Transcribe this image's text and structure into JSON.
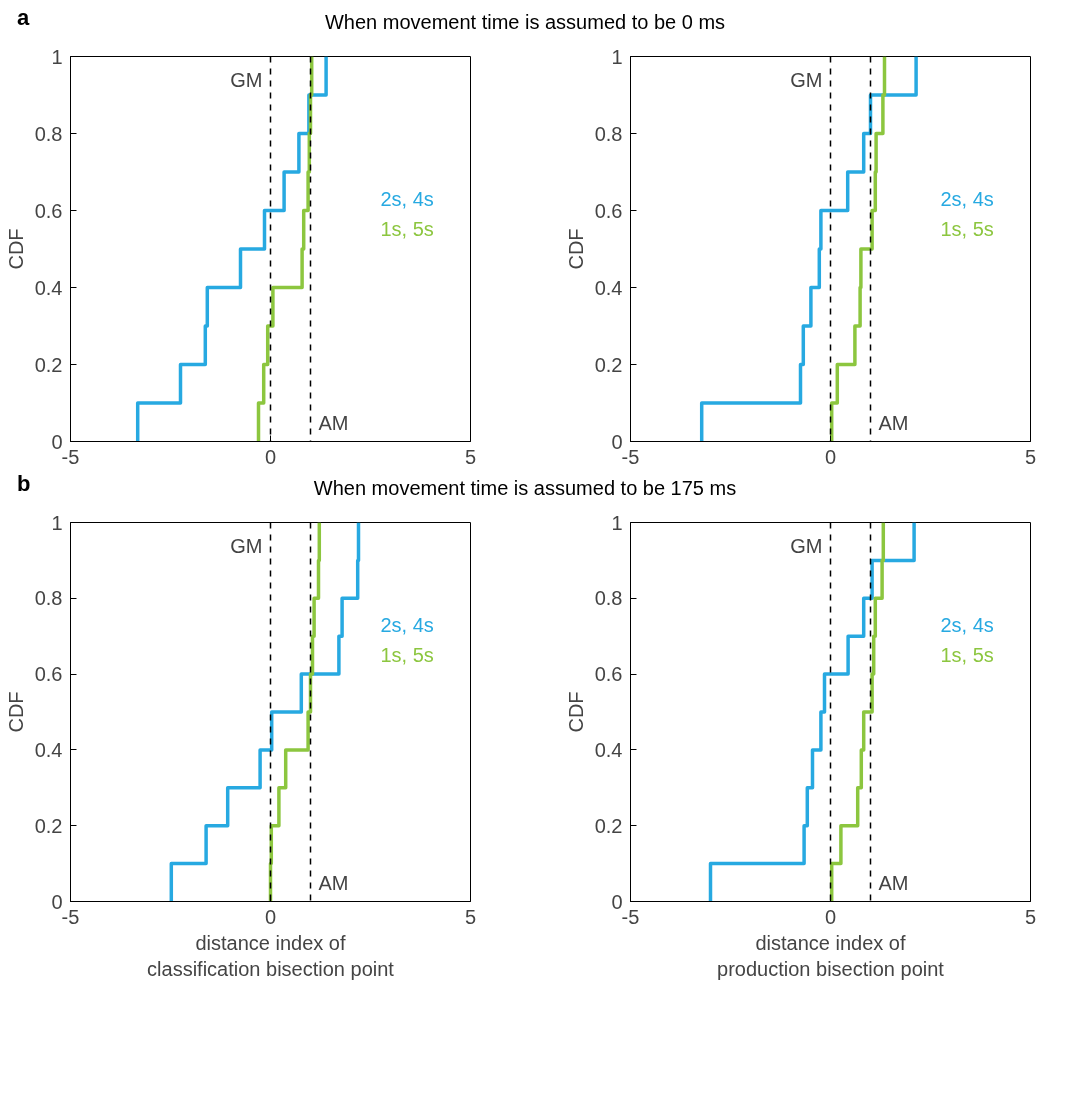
{
  "chart_data": [
    {
      "type": "step",
      "title": "When movement time is assumed to be 0 ms",
      "ylabel": "CDF",
      "annotations": [
        "a"
      ],
      "xlim": [
        -5,
        5
      ],
      "ylim": [
        0,
        1
      ],
      "xticks": [
        -5,
        0,
        5
      ],
      "yticks": [
        0,
        0.2,
        0.4,
        0.6,
        0.8,
        1
      ],
      "ref_lines": [
        {
          "axis": "x",
          "value": 0,
          "label": "GM",
          "color": "#000000",
          "line_style": "dashed"
        },
        {
          "axis": "x",
          "value": 1,
          "label": "AM",
          "color": "#000000",
          "line_style": "dashed"
        }
      ],
      "series": [
        {
          "name": "2s, 4s",
          "color": "#27a9e1",
          "x": [
            -3.32,
            -3.32,
            -2.25,
            -1.63,
            -1.58,
            -0.75,
            -0.15,
            0.34,
            0.71,
            0.96,
            1.39
          ],
          "values": [
            0,
            0.1,
            0.2,
            0.3,
            0.4,
            0.5,
            0.6,
            0.7,
            0.8,
            0.9,
            1.0
          ]
        },
        {
          "name": "1s, 5s",
          "color": "#8cc63f",
          "x": [
            -0.3,
            -0.3,
            -0.17,
            -0.07,
            0.06,
            0.79,
            0.83,
            0.94,
            0.97,
            1.0,
            1.03
          ],
          "values": [
            0,
            0.1,
            0.2,
            0.3,
            0.4,
            0.5,
            0.6,
            0.7,
            0.8,
            0.9,
            1.0
          ]
        }
      ]
    },
    {
      "type": "step",
      "ylabel": "CDF",
      "xlim": [
        -5,
        5
      ],
      "ylim": [
        0,
        1
      ],
      "xticks": [
        -5,
        0,
        5
      ],
      "yticks": [
        0,
        0.2,
        0.4,
        0.6,
        0.8,
        1
      ],
      "ref_lines": [
        {
          "axis": "x",
          "value": 0,
          "label": "GM",
          "color": "#000000",
          "line_style": "dashed"
        },
        {
          "axis": "x",
          "value": 1,
          "label": "AM",
          "color": "#000000",
          "line_style": "dashed"
        }
      ],
      "series": [
        {
          "name": "2s, 4s",
          "color": "#27a9e1",
          "x": [
            -3.22,
            -3.22,
            -0.75,
            -0.68,
            -0.49,
            -0.28,
            -0.24,
            0.43,
            0.83,
            1.0,
            2.14
          ],
          "values": [
            0,
            0.1,
            0.2,
            0.3,
            0.4,
            0.5,
            0.6,
            0.7,
            0.8,
            0.9,
            1.0
          ]
        },
        {
          "name": "1s, 5s",
          "color": "#8cc63f",
          "x": [
            0.03,
            0.03,
            0.17,
            0.61,
            0.74,
            0.76,
            1.04,
            1.12,
            1.14,
            1.31,
            1.35
          ],
          "values": [
            0,
            0.1,
            0.2,
            0.3,
            0.4,
            0.5,
            0.6,
            0.7,
            0.8,
            0.9,
            1.0
          ]
        }
      ]
    },
    {
      "type": "step",
      "title": "When movement time is assumed to be 175 ms",
      "ylabel": "CDF",
      "xlabel": "distance index of classification bisection point",
      "annotations": [
        "b"
      ],
      "xlim": [
        -5,
        5
      ],
      "ylim": [
        0,
        1
      ],
      "xticks": [
        -5,
        0,
        5
      ],
      "yticks": [
        0,
        0.2,
        0.4,
        0.6,
        0.8,
        1
      ],
      "ref_lines": [
        {
          "axis": "x",
          "value": 0,
          "label": "GM",
          "color": "#000000",
          "line_style": "dashed"
        },
        {
          "axis": "x",
          "value": 1,
          "label": "AM",
          "color": "#000000",
          "line_style": "dashed"
        }
      ],
      "series": [
        {
          "name": "2s, 4s",
          "color": "#27a9e1",
          "x": [
            -2.48,
            -2.48,
            -1.61,
            -1.07,
            -0.26,
            0.03,
            0.77,
            1.71,
            1.79,
            2.18,
            2.2
          ],
          "values": [
            0,
            0.1,
            0.2,
            0.3,
            0.4,
            0.5,
            0.6,
            0.7,
            0.8,
            0.9,
            1.0
          ]
        },
        {
          "name": "1s, 5s",
          "color": "#8cc63f",
          "x": [
            0.0,
            0.0,
            0.02,
            0.21,
            0.38,
            0.94,
            1.0,
            1.05,
            1.09,
            1.2,
            1.22
          ],
          "values": [
            0,
            0.1,
            0.2,
            0.3,
            0.4,
            0.5,
            0.6,
            0.7,
            0.8,
            0.9,
            1.0
          ]
        }
      ]
    },
    {
      "type": "step",
      "ylabel": "CDF",
      "xlabel": "distance index of production bisection point",
      "xlim": [
        -5,
        5
      ],
      "ylim": [
        0,
        1
      ],
      "xticks": [
        -5,
        0,
        5
      ],
      "yticks": [
        0,
        0.2,
        0.4,
        0.6,
        0.8,
        1
      ],
      "ref_lines": [
        {
          "axis": "x",
          "value": 0,
          "label": "GM",
          "color": "#000000",
          "line_style": "dashed"
        },
        {
          "axis": "x",
          "value": 1,
          "label": "AM",
          "color": "#000000",
          "line_style": "dashed"
        }
      ],
      "series": [
        {
          "name": "2s, 4s",
          "color": "#27a9e1",
          "x": [
            -3.0,
            -3.0,
            -0.66,
            -0.58,
            -0.45,
            -0.24,
            -0.15,
            0.44,
            0.83,
            1.04,
            2.09
          ],
          "values": [
            0,
            0.1,
            0.2,
            0.3,
            0.4,
            0.5,
            0.6,
            0.7,
            0.8,
            0.9,
            1.0
          ]
        },
        {
          "name": "1s, 5s",
          "color": "#8cc63f",
          "x": [
            0.03,
            0.03,
            0.26,
            0.68,
            0.77,
            0.83,
            1.04,
            1.08,
            1.12,
            1.29,
            1.32
          ],
          "values": [
            0,
            0.1,
            0.2,
            0.3,
            0.4,
            0.5,
            0.6,
            0.7,
            0.8,
            0.9,
            1.0
          ]
        }
      ]
    }
  ]
}
